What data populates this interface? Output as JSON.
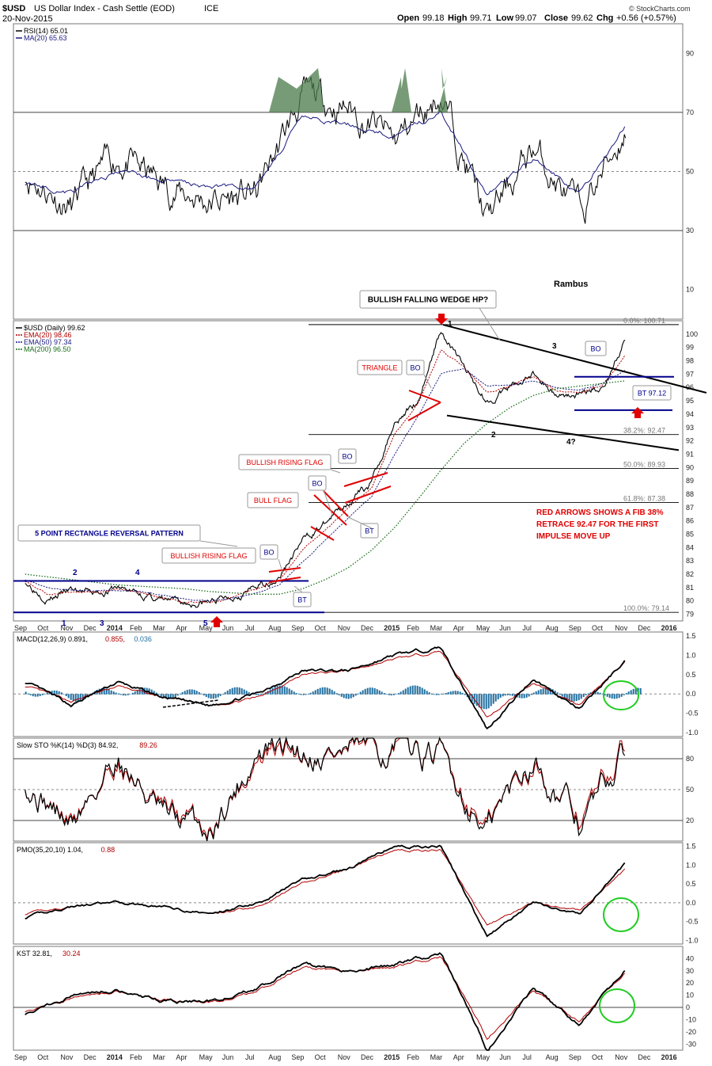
{
  "header": {
    "symbol": "$USD",
    "name": "US Dollar Index - Cash Settle (EOD)",
    "exchange": "ICE",
    "date": "20-Nov-2015",
    "open_label": "Open",
    "open": "99.18",
    "high_label": "High",
    "high": "99.71",
    "low_label": "Low",
    "low": "99.07",
    "close_label": "Close",
    "close": "99.62",
    "chg_label": "Chg",
    "chg": "+0.56 (+0.57%)",
    "credit": "© StockCharts.com"
  },
  "x_axis": {
    "labels": [
      "Sep",
      "Oct",
      "Nov",
      "Dec",
      "2014",
      "Feb",
      "Mar",
      "Apr",
      "May",
      "Jun",
      "Jul",
      "Aug",
      "Sep",
      "Oct",
      "Nov",
      "Dec",
      "2015",
      "Feb",
      "Mar",
      "Apr",
      "May",
      "Jun",
      "Jul",
      "Aug",
      "Sep",
      "Oct",
      "Nov",
      "Dec",
      "2016"
    ],
    "bold": [
      "2014",
      "2015",
      "2016"
    ]
  },
  "panels": {
    "rsi": {
      "legend": [
        {
          "text": "RSI(14) 65.01",
          "color": "#000000"
        },
        {
          "text": "MA(20) 65.63",
          "color": "#1a1a80"
        }
      ],
      "ticks": [
        "90",
        "70",
        "50",
        "30",
        "10"
      ],
      "overbought": 70,
      "oversold": 30,
      "note": "Rambus"
    },
    "price": {
      "legend": [
        {
          "text": "$USD (Daily) 99.62",
          "color": "#000000"
        },
        {
          "text": "EMA(20) 98.46",
          "color": "#b00000"
        },
        {
          "text": "EMA(50) 97.34",
          "color": "#1a1a80"
        },
        {
          "text": "MA(200) 96.50",
          "color": "#1a6e1a"
        }
      ],
      "ticks": [
        "100",
        "99",
        "98",
        "97",
        "96",
        "95",
        "94",
        "93",
        "92",
        "91",
        "90",
        "89",
        "88",
        "87",
        "86",
        "85",
        "84",
        "83",
        "82",
        "81",
        "80",
        "79"
      ],
      "fib": [
        {
          "label": "0.0%: 100.71",
          "value": 100.71
        },
        {
          "label": "38.2%: 92.47",
          "value": 92.47
        },
        {
          "label": "50.0%: 89.93",
          "value": 89.93
        },
        {
          "label": "61.8%: 87.38",
          "value": 87.38
        },
        {
          "label": "100.0%: 79.14",
          "value": 79.14
        }
      ],
      "annotations": {
        "wedge_title": "BULLISH FALLING WEDGE HP?",
        "triangle": "TRIANGLE",
        "brf_upper": "BULLISH RISING FLAG",
        "bull_flag": "BULL FLAG",
        "brf_lower": "BULLISH RISING FLAG",
        "rect_pattern": "5 POINT RECTANGLE REVERSAL PATTERN",
        "bo": "BO",
        "bt": "BT",
        "bt_value": "BT 97.12",
        "fib_note": [
          "RED ARROWS SHOWS A FIB 38%",
          "RETRACE 92.47 FOR THE FIRST",
          "IMPULSE MOVE UP"
        ],
        "wedge_points": [
          "1",
          "2",
          "3",
          "4?"
        ],
        "rect_points": [
          "1",
          "2",
          "3",
          "4",
          "5"
        ]
      }
    },
    "macd": {
      "legend": [
        {
          "text": "MACD(12,26,9) 0.891,",
          "color": "#000000"
        },
        {
          "text": "0.855,",
          "color": "#b00000"
        },
        {
          "text": "0.036",
          "color": "#1e6ea0"
        }
      ],
      "ticks": [
        "1.5",
        "1.0",
        "0.5",
        "0.0",
        "-0.5",
        "-1.0"
      ]
    },
    "sto": {
      "legend": [
        {
          "text": "Slow STO %K(14) %D(3) 84.92,",
          "color": "#000000"
        },
        {
          "text": "89.26",
          "color": "#b00000"
        }
      ],
      "ticks": [
        "80",
        "50",
        "20"
      ]
    },
    "pmo": {
      "legend": [
        {
          "text": "PMO(35,20,10) 1.04,",
          "color": "#000000"
        },
        {
          "text": "0.88",
          "color": "#b00000"
        }
      ],
      "ticks": [
        "1.5",
        "1.0",
        "0.5",
        "0.0",
        "-0.5",
        "-1.0"
      ]
    },
    "kst": {
      "legend": [
        {
          "text": "KST 32.81,",
          "color": "#000000"
        },
        {
          "text": "30.24",
          "color": "#b00000"
        }
      ],
      "ticks": [
        "40",
        "30",
        "20",
        "10",
        "0",
        "-10",
        "-20",
        "-30"
      ]
    }
  },
  "colors": {
    "price": "#000000",
    "ema20": "#b00000",
    "ema50": "#1a1a80",
    "ma200": "#1a6e1a",
    "annotation_red": "#e00000",
    "pattern_blue": "#00008b",
    "histogram": "#1e6ea0",
    "highlight_circle": "#22cc22",
    "rsi_fill": "#4a7a4a"
  },
  "chart_data": [
    {
      "type": "line",
      "panel": "RSI",
      "title": "RSI(14)",
      "series": [
        {
          "name": "RSI(14)",
          "x": [
            "2013-09",
            "2013-11",
            "2014-01",
            "2014-03",
            "2014-05",
            "2014-07",
            "2014-09",
            "2014-11",
            "2015-01",
            "2015-03",
            "2015-05",
            "2015-07",
            "2015-09",
            "2015-11"
          ],
          "values": [
            50,
            38,
            55,
            45,
            40,
            42,
            75,
            72,
            60,
            77,
            33,
            58,
            35,
            65
          ]
        },
        {
          "name": "MA(20)",
          "x": [
            "2013-09",
            "2013-11",
            "2014-01",
            "2014-03",
            "2014-05",
            "2014-07",
            "2014-09",
            "2014-11",
            "2015-01",
            "2015-03",
            "2015-05",
            "2015-07",
            "2015-09",
            "2015-11"
          ],
          "values": [
            46,
            43,
            50,
            47,
            45,
            45,
            68,
            66,
            62,
            70,
            42,
            55,
            42,
            65.6
          ]
        }
      ],
      "ylim": [
        0,
        100
      ]
    },
    {
      "type": "line",
      "panel": "Price",
      "title": "$USD (Daily)",
      "x": [
        "2013-09",
        "2013-10",
        "2013-11",
        "2013-12",
        "2014-01",
        "2014-02",
        "2014-03",
        "2014-04",
        "2014-05",
        "2014-06",
        "2014-07",
        "2014-08",
        "2014-09",
        "2014-10",
        "2014-11",
        "2014-12",
        "2015-01",
        "2015-02",
        "2015-03",
        "2015-04",
        "2015-05",
        "2015-06",
        "2015-07",
        "2015-08",
        "2015-09",
        "2015-10",
        "2015-11"
      ],
      "series": [
        {
          "name": "$USD",
          "values": [
            81.5,
            80.2,
            80.8,
            80.5,
            81.0,
            80.5,
            80.0,
            79.8,
            79.9,
            80.4,
            81.0,
            81.8,
            84.5,
            85.8,
            87.5,
            88.8,
            93.5,
            95.0,
            100.4,
            97.5,
            95.0,
            96.0,
            97.0,
            95.5,
            95.5,
            96.0,
            99.6
          ]
        },
        {
          "name": "EMA(20)",
          "values": [
            81.5,
            80.5,
            80.7,
            80.6,
            80.9,
            80.6,
            80.2,
            79.9,
            79.9,
            80.3,
            80.8,
            81.6,
            83.8,
            85.4,
            87.0,
            88.5,
            92.5,
            94.8,
            98.9,
            97.5,
            95.6,
            96.1,
            96.8,
            95.7,
            95.6,
            96.2,
            98.46
          ]
        },
        {
          "name": "EMA(50)",
          "values": [
            81.6,
            81.0,
            80.8,
            80.7,
            80.8,
            80.7,
            80.4,
            80.1,
            80.0,
            80.2,
            80.6,
            81.2,
            82.9,
            84.6,
            86.2,
            87.8,
            91.0,
            93.8,
            97.0,
            97.4,
            96.1,
            96.2,
            96.5,
            96.0,
            95.8,
            96.3,
            97.34
          ]
        },
        {
          "name": "MA(200)",
          "values": [
            82.0,
            81.8,
            81.6,
            81.4,
            81.2,
            81.1,
            81.0,
            80.9,
            80.7,
            80.6,
            80.5,
            80.5,
            80.9,
            81.6,
            82.5,
            83.8,
            85.5,
            87.6,
            89.8,
            91.8,
            93.3,
            94.5,
            95.4,
            95.9,
            96.1,
            96.3,
            96.5
          ]
        }
      ],
      "ylim": [
        78.5,
        101
      ]
    },
    {
      "type": "line",
      "panel": "MACD",
      "title": "MACD(12,26,9)",
      "x": [
        "2013-09",
        "2013-11",
        "2014-01",
        "2014-03",
        "2014-05",
        "2014-07",
        "2014-09",
        "2014-11",
        "2015-01",
        "2015-03",
        "2015-05",
        "2015-07",
        "2015-09",
        "2015-11"
      ],
      "series": [
        {
          "name": "MACD",
          "values": [
            0.3,
            -0.3,
            0.3,
            -0.1,
            -0.3,
            0.0,
            0.6,
            0.6,
            1.0,
            1.2,
            -0.9,
            0.4,
            -0.4,
            0.891
          ]
        },
        {
          "name": "Signal",
          "values": [
            0.2,
            -0.2,
            0.2,
            -0.1,
            -0.3,
            -0.1,
            0.5,
            0.6,
            0.9,
            1.1,
            -0.6,
            0.3,
            -0.3,
            0.855
          ]
        }
      ],
      "ylim": [
        -1.1,
        1.6
      ]
    },
    {
      "type": "line",
      "panel": "Slow STO",
      "title": "Slow STO %K(14) %D(3)",
      "x": [
        "2013-09",
        "2013-11",
        "2014-01",
        "2014-03",
        "2014-05",
        "2014-07",
        "2014-09",
        "2014-11",
        "2015-01",
        "2015-03",
        "2015-05",
        "2015-07",
        "2015-09",
        "2015-11"
      ],
      "series": [
        {
          "name": "%K",
          "values": [
            60,
            15,
            85,
            20,
            10,
            85,
            90,
            85,
            90,
            80,
            10,
            85,
            15,
            84.92
          ]
        },
        {
          "name": "%D",
          "values": [
            58,
            18,
            80,
            25,
            12,
            80,
            88,
            84,
            88,
            82,
            14,
            80,
            20,
            89.26
          ]
        }
      ],
      "ylim": [
        0,
        100
      ]
    },
    {
      "type": "line",
      "panel": "PMO",
      "title": "PMO(35,20,10)",
      "x": [
        "2013-09",
        "2013-11",
        "2014-01",
        "2014-03",
        "2014-05",
        "2014-07",
        "2014-09",
        "2014-11",
        "2015-01",
        "2015-03",
        "2015-05",
        "2015-07",
        "2015-09",
        "2015-11"
      ],
      "series": [
        {
          "name": "PMO",
          "values": [
            -0.4,
            -0.1,
            0.0,
            -0.1,
            -0.3,
            0.0,
            0.6,
            0.9,
            1.5,
            1.5,
            -0.9,
            0.0,
            -0.3,
            1.04
          ]
        },
        {
          "name": "Signal",
          "values": [
            -0.3,
            -0.1,
            0.0,
            -0.1,
            -0.3,
            -0.1,
            0.5,
            0.9,
            1.4,
            1.4,
            -0.6,
            0.0,
            -0.2,
            0.88
          ]
        }
      ],
      "ylim": [
        -1.1,
        1.6
      ]
    },
    {
      "type": "line",
      "panel": "KST",
      "title": "KST",
      "x": [
        "2013-09",
        "2013-11",
        "2014-01",
        "2014-03",
        "2014-05",
        "2014-07",
        "2014-09",
        "2014-11",
        "2015-01",
        "2015-03",
        "2015-05",
        "2015-07",
        "2015-09",
        "2015-11"
      ],
      "series": [
        {
          "name": "KST",
          "values": [
            -5,
            10,
            15,
            5,
            5,
            15,
            35,
            30,
            35,
            45,
            -35,
            15,
            -15,
            32.81
          ]
        },
        {
          "name": "Signal",
          "values": [
            -3,
            8,
            14,
            6,
            4,
            13,
            32,
            30,
            33,
            42,
            -25,
            13,
            -12,
            30.24
          ]
        }
      ],
      "ylim": [
        -35,
        50
      ]
    }
  ]
}
